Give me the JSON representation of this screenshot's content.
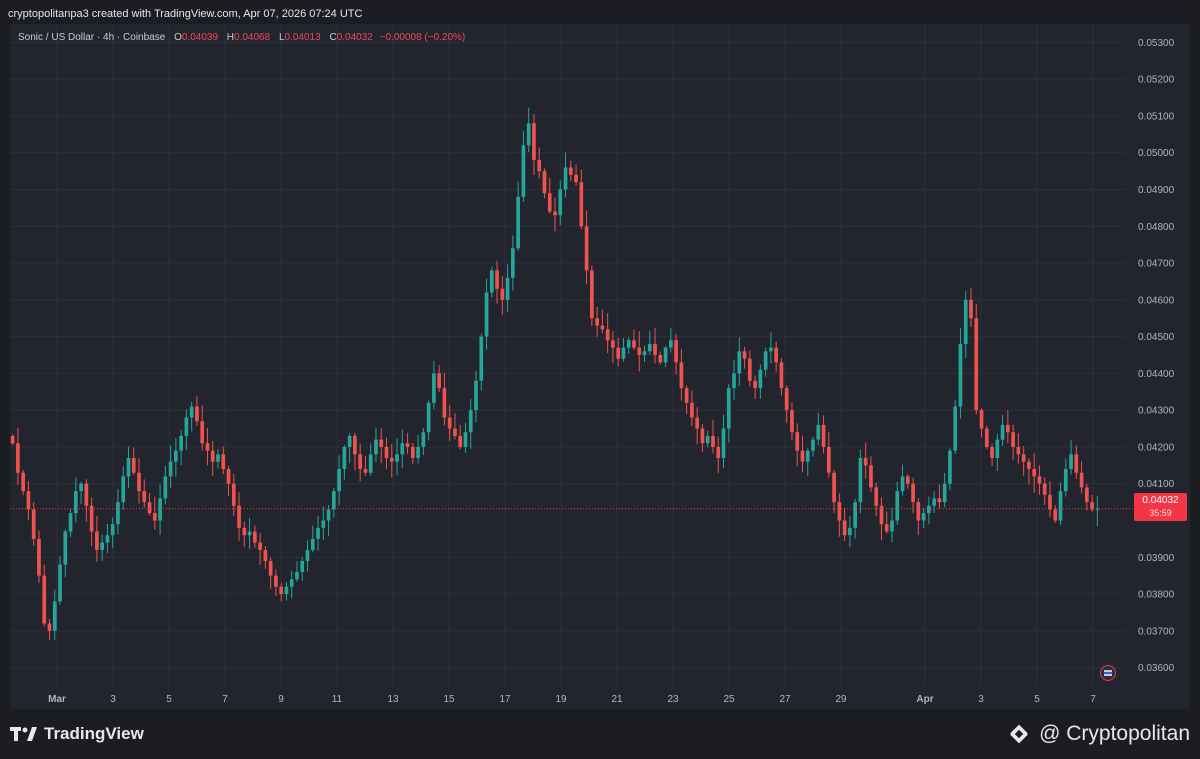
{
  "header": {
    "caption": "cryptopolitanpa3 created with TradingView.com, Apr 07, 2026 07:24 UTC"
  },
  "legend": {
    "symbol": "Sonic / US Dollar · 4h · Coinbase",
    "o_label": "O",
    "o_value": "0.04039",
    "h_label": "H",
    "h_value": "0.04068",
    "l_label": "L",
    "l_value": "0.04013",
    "c_label": "C",
    "c_value": "0.04032",
    "change": "−0.00008 (−0.20%)"
  },
  "price_tag": {
    "price": "0.04032",
    "countdown": "35:59"
  },
  "footer": {
    "logo_text": "TradingView",
    "brand": "@ Cryptopolitan"
  },
  "colors": {
    "up": "#26a69a",
    "down": "#ef5350",
    "grid": "#2c303a",
    "axis_text": "#b2b5be",
    "price_line": "#f23645"
  },
  "icons": [
    "tradingview-logo-icon",
    "binance-icon",
    "us-flag-icon"
  ],
  "chart_data": {
    "type": "candlestick",
    "title": "",
    "xlabel": "",
    "ylabel": "",
    "y_range": [
      0.0355,
      0.0535
    ],
    "y_ticks": [
      "0.05300",
      "0.05200",
      "0.05100",
      "0.05000",
      "0.04900",
      "0.04800",
      "0.04700",
      "0.04600",
      "0.04500",
      "0.04400",
      "0.04300",
      "0.04200",
      "0.04100",
      "0.03900",
      "0.03800",
      "0.03700",
      "0.03600"
    ],
    "x_ticks": [
      {
        "label": "Mar",
        "day": 1
      },
      {
        "label": "3",
        "day": 3
      },
      {
        "label": "5",
        "day": 5
      },
      {
        "label": "7",
        "day": 7
      },
      {
        "label": "9",
        "day": 9
      },
      {
        "label": "11",
        "day": 11
      },
      {
        "label": "13",
        "day": 13
      },
      {
        "label": "15",
        "day": 15
      },
      {
        "label": "17",
        "day": 17
      },
      {
        "label": "19",
        "day": 19
      },
      {
        "label": "21",
        "day": 21
      },
      {
        "label": "23",
        "day": 23
      },
      {
        "label": "25",
        "day": 25
      },
      {
        "label": "27",
        "day": 27
      },
      {
        "label": "29",
        "day": 29
      },
      {
        "label": "Apr",
        "day": 32
      },
      {
        "label": "3",
        "day": 34
      },
      {
        "label": "5",
        "day": 36
      },
      {
        "label": "7",
        "day": 38
      }
    ],
    "candles_per_day": 6,
    "current_price": 0.04032,
    "grid": true,
    "closes": [
      0.0421,
      0.0413,
      0.0408,
      0.0403,
      0.0395,
      0.0385,
      0.0372,
      0.037,
      0.0378,
      0.0388,
      0.0397,
      0.0402,
      0.0408,
      0.041,
      0.0404,
      0.0397,
      0.0392,
      0.0394,
      0.0396,
      0.0399,
      0.0405,
      0.0412,
      0.0417,
      0.0413,
      0.0408,
      0.0405,
      0.0402,
      0.04,
      0.0406,
      0.0412,
      0.0416,
      0.0419,
      0.0423,
      0.0428,
      0.0431,
      0.0427,
      0.0421,
      0.0419,
      0.0416,
      0.0418,
      0.0414,
      0.041,
      0.0404,
      0.0398,
      0.0396,
      0.0397,
      0.0394,
      0.0392,
      0.0389,
      0.0385,
      0.0382,
      0.038,
      0.0382,
      0.0384,
      0.0386,
      0.0389,
      0.0392,
      0.0395,
      0.0398,
      0.04,
      0.0403,
      0.0408,
      0.0414,
      0.042,
      0.0423,
      0.0418,
      0.0414,
      0.0413,
      0.0418,
      0.0422,
      0.042,
      0.0417,
      0.0416,
      0.0418,
      0.0421,
      0.042,
      0.0417,
      0.042,
      0.0424,
      0.0432,
      0.044,
      0.0436,
      0.0428,
      0.0425,
      0.0423,
      0.042,
      0.0424,
      0.043,
      0.0438,
      0.045,
      0.0462,
      0.0468,
      0.0463,
      0.046,
      0.0466,
      0.0474,
      0.0488,
      0.0502,
      0.0508,
      0.0498,
      0.0495,
      0.0489,
      0.0484,
      0.0483,
      0.049,
      0.0496,
      0.0494,
      0.0492,
      0.048,
      0.0468,
      0.0455,
      0.0453,
      0.0452,
      0.0449,
      0.0447,
      0.0444,
      0.0447,
      0.0449,
      0.0447,
      0.0445,
      0.0446,
      0.0448,
      0.0445,
      0.0443,
      0.0447,
      0.0449,
      0.0443,
      0.0436,
      0.0432,
      0.0428,
      0.0425,
      0.0421,
      0.0423,
      0.042,
      0.0417,
      0.0425,
      0.0436,
      0.044,
      0.0446,
      0.0444,
      0.0438,
      0.0436,
      0.0441,
      0.0446,
      0.0447,
      0.0443,
      0.0436,
      0.043,
      0.0424,
      0.0419,
      0.0416,
      0.0419,
      0.0422,
      0.0426,
      0.042,
      0.0413,
      0.0405,
      0.04,
      0.0396,
      0.0398,
      0.0405,
      0.0417,
      0.0415,
      0.0409,
      0.0404,
      0.0399,
      0.0397,
      0.04,
      0.0408,
      0.0412,
      0.041,
      0.0405,
      0.04,
      0.0402,
      0.0404,
      0.0406,
      0.0405,
      0.041,
      0.0419,
      0.0431,
      0.0448,
      0.046,
      0.0455,
      0.043,
      0.0425,
      0.042,
      0.0417,
      0.0422,
      0.0426,
      0.0424,
      0.042,
      0.0418,
      0.0416,
      0.0414,
      0.0412,
      0.041,
      0.0407,
      0.0403,
      0.04,
      0.0408,
      0.0414,
      0.0418,
      0.0413,
      0.0409,
      0.0405,
      0.0403,
      0.04032
    ]
  }
}
